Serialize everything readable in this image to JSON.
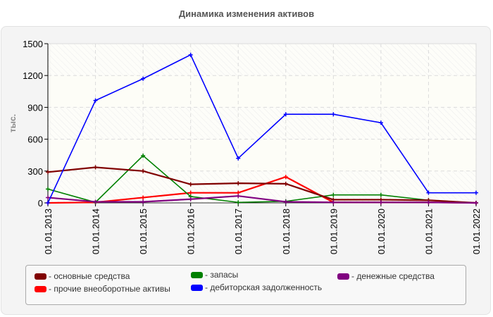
{
  "title": "Динамика изменения активов",
  "chart_data": {
    "type": "line",
    "title": "Динамика изменения активов",
    "xlabel": "",
    "ylabel": "тыс.",
    "ylim": [
      0,
      1500
    ],
    "yticks": [
      0,
      300,
      600,
      900,
      1200,
      1500
    ],
    "grid": true,
    "legend_position": "bottom",
    "categories": [
      "01.01.2013",
      "01.01.2014",
      "01.01.2015",
      "01.01.2016",
      "01.01.2017",
      "01.01.2018",
      "01.01.2019",
      "01.01.2020",
      "01.01.2021",
      "01.01.2022"
    ],
    "series": [
      {
        "name": "основные средства",
        "color": "#800000",
        "values": [
          290,
          335,
          300,
          175,
          185,
          180,
          30,
          30,
          25,
          0
        ]
      },
      {
        "name": "прочие внеоборотные активы",
        "color": "#ff0000",
        "values": [
          0,
          5,
          50,
          95,
          95,
          245,
          5,
          5,
          5,
          0
        ]
      },
      {
        "name": "запасы",
        "color": "#008000",
        "values": [
          130,
          5,
          445,
          60,
          5,
          15,
          75,
          75,
          25,
          0
        ]
      },
      {
        "name": "дебиторская задолженность",
        "color": "#0000ff",
        "values": [
          0,
          965,
          1170,
          1395,
          420,
          835,
          835,
          755,
          95,
          95
        ]
      },
      {
        "name": "денежные средства",
        "color": "#800080",
        "values": [
          50,
          10,
          10,
          35,
          65,
          10,
          5,
          5,
          5,
          0
        ]
      }
    ]
  },
  "legend": {
    "items": [
      {
        "label": "- основные средства",
        "color": "#800000"
      },
      {
        "label": "- прочие внеоборотные активы",
        "color": "#ff0000"
      },
      {
        "label": "- запасы",
        "color": "#008000"
      },
      {
        "label": "- дебиторская задолженность",
        "color": "#0000ff"
      },
      {
        "label": "- денежные средства",
        "color": "#800080"
      }
    ]
  }
}
